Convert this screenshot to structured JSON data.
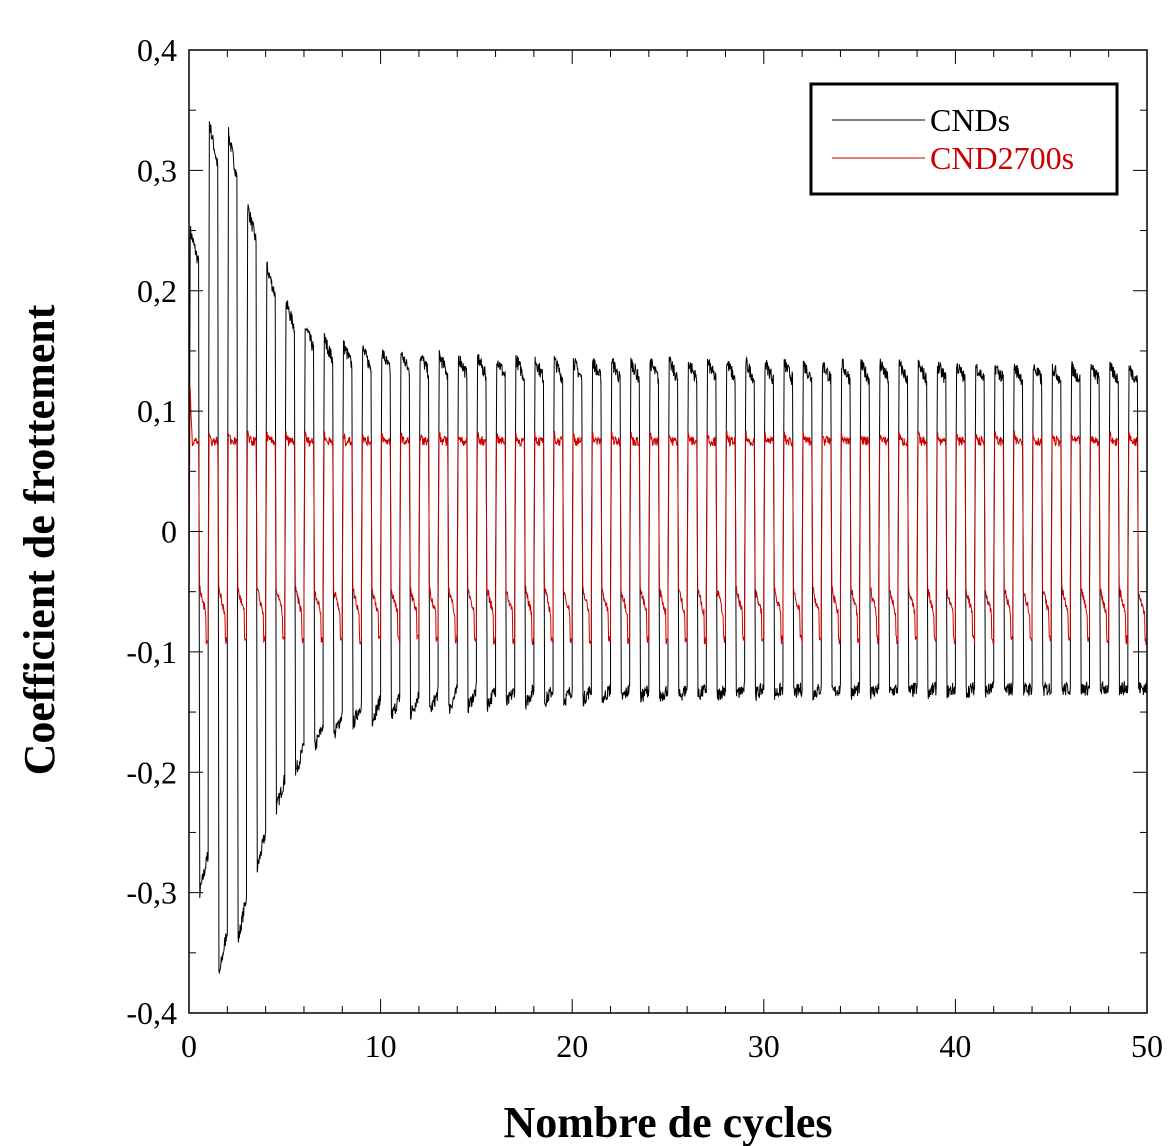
{
  "chart_data": {
    "type": "line",
    "xlabel": "Nombre de cycles",
    "ylabel": "Coefficient de frottement",
    "xlim": [
      0,
      50
    ],
    "ylim": [
      -0.4,
      0.4
    ],
    "x_ticks": [
      "0",
      "10",
      "20",
      "30",
      "40",
      "50"
    ],
    "y_ticks": [
      "0,4",
      "0,3",
      "0,2",
      "0,1",
      "0",
      "-0,1",
      "-0,2",
      "-0,3",
      "-0,4"
    ],
    "x_tick_values": [
      0,
      10,
      20,
      30,
      40,
      50
    ],
    "y_tick_values": [
      0.4,
      0.3,
      0.2,
      0.1,
      0,
      -0.1,
      -0.2,
      -0.3,
      -0.4
    ],
    "grid": false,
    "legend_position": "top-right",
    "series": [
      {
        "name": "CNDs",
        "color": "#000000",
        "cycles": 50,
        "peak_envelope": [
          {
            "cycle": 0.5,
            "max": 0.25,
            "min": -0.3
          },
          {
            "cycle": 1.5,
            "max": 0.34,
            "min": -0.37
          },
          {
            "cycle": 2.5,
            "max": 0.33,
            "min": -0.34
          },
          {
            "cycle": 3.5,
            "max": 0.27,
            "min": -0.28
          },
          {
            "cycle": 4.5,
            "max": 0.22,
            "min": -0.23
          },
          {
            "cycle": 5.5,
            "max": 0.19,
            "min": -0.2
          },
          {
            "cycle": 6.5,
            "max": 0.17,
            "min": -0.18
          },
          {
            "cycle": 7.5,
            "max": 0.16,
            "min": -0.17
          },
          {
            "cycle": 8.5,
            "max": 0.155,
            "min": -0.16
          },
          {
            "cycle": 10,
            "max": 0.15,
            "min": -0.155
          },
          {
            "cycle": 15,
            "max": 0.145,
            "min": -0.145
          },
          {
            "cycle": 20,
            "max": 0.142,
            "min": -0.14
          },
          {
            "cycle": 30,
            "max": 0.14,
            "min": -0.135
          },
          {
            "cycle": 40,
            "max": 0.138,
            "min": -0.133
          },
          {
            "cycle": 50,
            "max": 0.135,
            "min": -0.13
          }
        ],
        "plateau_high": 0.125,
        "plateau_low": -0.13
      },
      {
        "name": "CND2700s",
        "color": "#cc0000",
        "cycles": 50,
        "initial_peak": 0.12,
        "plateau_high": 0.075,
        "plateau_low": -0.06,
        "spike_low": -0.09
      }
    ]
  }
}
